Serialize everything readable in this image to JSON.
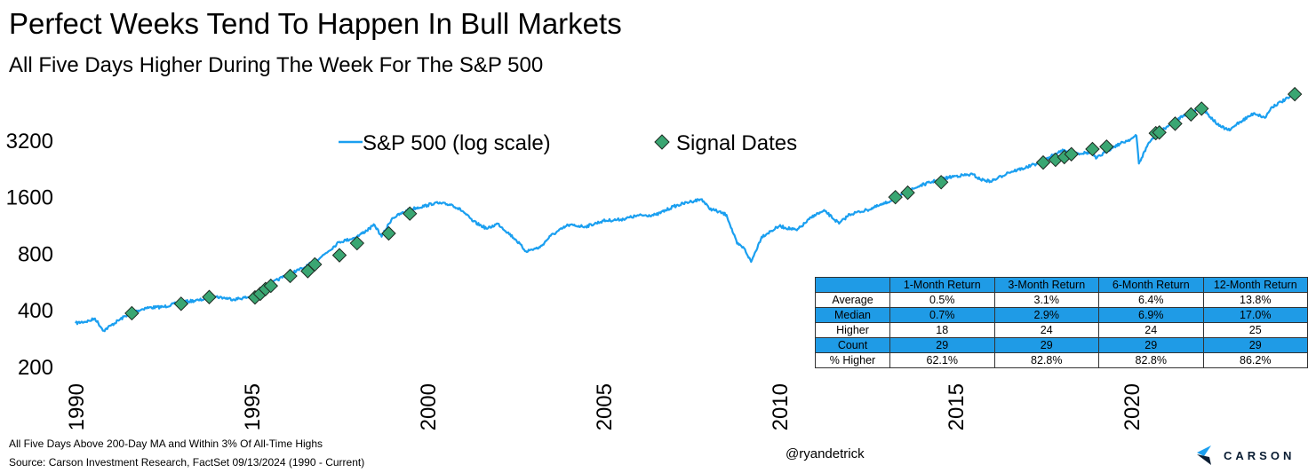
{
  "title": "Perfect Weeks Tend To Happen In Bull Markets",
  "subtitle": "All Five Days Higher During The Week For The S&P 500",
  "footnote": "All Five Days Above 200-Day MA and Within 3% Of All-Time Highs",
  "source": "Source: Carson Investment Research, FactSet 09/13/2024 (1990 - Current)",
  "handle": "@ryandetrick",
  "brand": {
    "name": "CARSON",
    "logo_icon": "carson-chevron-logo"
  },
  "colors": {
    "line": "#1a9ff0",
    "marker_fill": "#3aa672",
    "marker_stroke": "#1e2a22",
    "table_blue": "#1f9be6"
  },
  "chart_data": {
    "type": "line",
    "y_scale": "log",
    "ylim": [
      200,
      6000
    ],
    "y_ticks": [
      200,
      400,
      800,
      1600,
      3200
    ],
    "y_tick_labels": [
      "200",
      "400",
      "800",
      "1600",
      "3200"
    ],
    "xlim": [
      1990,
      2024.7
    ],
    "x_ticks": [
      1990,
      1995,
      2000,
      2005,
      2010,
      2015,
      2020
    ],
    "x_tick_labels": [
      "1990",
      "1995",
      "2000",
      "2005",
      "2010",
      "2015",
      "2020"
    ],
    "legend": {
      "placement": "top-center"
    },
    "series": [
      {
        "name": "S&P 500 (log scale)",
        "kind": "line",
        "x": [
          1990.0,
          1990.4,
          1990.55,
          1990.8,
          1991.0,
          1991.5,
          1992.0,
          1992.5,
          1993.0,
          1993.5,
          1994.0,
          1994.5,
          1995.0,
          1995.5,
          1996.0,
          1996.5,
          1997.0,
          1997.5,
          1997.8,
          1998.0,
          1998.5,
          1998.7,
          1999.0,
          1999.5,
          2000.0,
          2000.2,
          2000.7,
          2001.0,
          2001.3,
          2001.7,
          2002.0,
          2002.5,
          2002.8,
          2003.2,
          2003.5,
          2004.0,
          2004.5,
          2005.0,
          2005.5,
          2006.0,
          2006.5,
          2007.0,
          2007.5,
          2007.8,
          2008.0,
          2008.5,
          2008.8,
          2009.0,
          2009.2,
          2009.5,
          2010.0,
          2010.5,
          2011.0,
          2011.3,
          2011.7,
          2012.0,
          2012.5,
          2013.0,
          2013.5,
          2014.0,
          2014.5,
          2015.0,
          2015.5,
          2015.7,
          2016.0,
          2016.2,
          2016.5,
          2017.0,
          2017.5,
          2018.0,
          2018.5,
          2018.9,
          2019.0,
          2019.5,
          2020.0,
          2020.15,
          2020.22,
          2020.5,
          2021.0,
          2021.5,
          2021.99,
          2022.5,
          2022.8,
          2023.0,
          2023.5,
          2023.8,
          2024.0,
          2024.5,
          2024.7
        ],
        "y": [
          340,
          350,
          360,
          310,
          330,
          380,
          410,
          415,
          440,
          450,
          470,
          455,
          470,
          545,
          615,
          670,
          770,
          920,
          950,
          980,
          1130,
          980,
          1230,
          1370,
          1440,
          1480,
          1450,
          1340,
          1180,
          1080,
          1150,
          950,
          820,
          860,
          990,
          1130,
          1110,
          1190,
          1210,
          1270,
          1280,
          1420,
          1510,
          1550,
          1390,
          1280,
          900,
          850,
          720,
          980,
          1115,
          1060,
          1280,
          1340,
          1150,
          1290,
          1360,
          1470,
          1650,
          1830,
          1960,
          2060,
          2100,
          1980,
          1930,
          2000,
          2150,
          2280,
          2470,
          2810,
          2720,
          2750,
          2550,
          2950,
          3250,
          3370,
          2400,
          3100,
          3750,
          4350,
          4780,
          3800,
          3600,
          3900,
          4450,
          4200,
          4800,
          5400,
          5600
        ]
      },
      {
        "name": "Signal Dates",
        "kind": "scatter",
        "marker": "diamond",
        "x": [
          1991.6,
          1993.0,
          1993.8,
          1995.1,
          1995.25,
          1995.4,
          1995.55,
          1996.1,
          1996.6,
          1996.8,
          1997.5,
          1998.0,
          1998.9,
          1999.5,
          2013.3,
          2013.65,
          2014.6,
          2017.5,
          2017.85,
          2018.1,
          2018.3,
          2018.9,
          2019.3,
          2020.7,
          2020.8,
          2021.25,
          2021.7,
          2022.0,
          2024.65
        ],
        "y": [
          384,
          431,
          468,
          466,
          487,
          516,
          537,
          606,
          643,
          698,
          781,
          905,
          1020,
          1300,
          1590,
          1680,
          1910,
          2430,
          2512,
          2598,
          2690,
          2865,
          2950,
          3480,
          3510,
          3910,
          4380,
          4700,
          5610
        ]
      }
    ]
  },
  "stats_table": {
    "headers": [
      "",
      "1-Month Return",
      "3-Month Return",
      "6-Month Return",
      "12-Month Return"
    ],
    "rows": [
      {
        "label": "Average",
        "values": [
          "0.5%",
          "3.1%",
          "6.4%",
          "13.8%"
        ]
      },
      {
        "label": "Median",
        "values": [
          "0.7%",
          "2.9%",
          "6.9%",
          "17.0%"
        ]
      },
      {
        "label": "Higher",
        "values": [
          "18",
          "24",
          "24",
          "25"
        ]
      },
      {
        "label": "Count",
        "values": [
          "29",
          "29",
          "29",
          "29"
        ]
      },
      {
        "label": "% Higher",
        "values": [
          "62.1%",
          "82.8%",
          "82.8%",
          "86.2%"
        ]
      }
    ]
  }
}
